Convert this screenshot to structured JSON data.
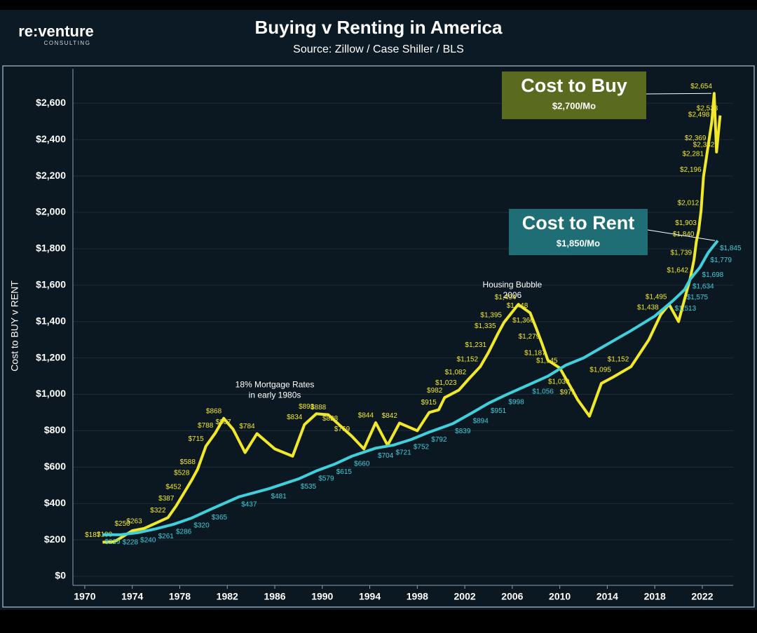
{
  "brand": {
    "name": "re:venture",
    "tagline": "CONSULTING"
  },
  "chart_data": {
    "type": "line",
    "title": "Buying v Renting in America",
    "subtitle": "Source: Zillow / Case Shiller / BLS",
    "y_label": "Cost to BUY v RENT",
    "xlim": [
      1969,
      2024.6
    ],
    "ylim": [
      -50,
      2790
    ],
    "xticks": [
      1970,
      1974,
      1978,
      1982,
      1986,
      1990,
      1994,
      1998,
      2002,
      2006,
      2010,
      2014,
      2018,
      2022
    ],
    "yticks": [
      {
        "value": 0,
        "label": "$0"
      },
      {
        "value": 200,
        "label": "$200"
      },
      {
        "value": 400,
        "label": "$400"
      },
      {
        "value": 600,
        "label": "$600"
      },
      {
        "value": 800,
        "label": "$800"
      },
      {
        "value": 1000,
        "label": "$1,000"
      },
      {
        "value": 1200,
        "label": "$1,200"
      },
      {
        "value": 1400,
        "label": "$1,400"
      },
      {
        "value": 1600,
        "label": "$1,600"
      },
      {
        "value": 1800,
        "label": "$1,800"
      },
      {
        "value": 2000,
        "label": "$2,000"
      },
      {
        "value": 2200,
        "label": "$2,200"
      },
      {
        "value": 2400,
        "label": "$2,400"
      },
      {
        "value": 2600,
        "label": "$2,600"
      }
    ],
    "grid": true,
    "series": [
      {
        "name": "Cost to Buy",
        "note": "$2,700/Mo",
        "color": "#f2e82a",
        "box_color": "#5a6a1f",
        "x": [
          1971.5,
          1972.5,
          1974,
          1975,
          1977,
          1977.7,
          1978.3,
          1979,
          1979.5,
          1980.2,
          1981,
          1981.7,
          1982.5,
          1983.5,
          1984.5,
          1986,
          1987.5,
          1988.5,
          1989.5,
          1990.5,
          1991.5,
          1992.5,
          1993.5,
          1994.5,
          1995.5,
          1996.5,
          1998,
          1999,
          1999.8,
          2000.3,
          2001.5,
          2002.3,
          2003.3,
          2004,
          2004.8,
          2005.3,
          2006.5,
          2007.5,
          2008,
          2008.5,
          2009,
          2010,
          2011,
          2011.5,
          2012.5,
          2013.5,
          2014.5,
          2016,
          2017.5,
          2018.5,
          2019.2,
          2020,
          2021,
          2021.3,
          2021.5,
          2021.7,
          2021.9,
          2022.1,
          2022.3,
          2022.5,
          2022.8,
          2023,
          2023.2,
          2023.5
        ],
        "values": [
          187,
          190,
          250,
          263,
          322,
          387,
          452,
          528,
          588,
          715,
          788,
          868,
          807,
          680,
          784,
          700,
          660,
          834,
          893,
          888,
          828,
          769,
          700,
          844,
          720,
          842,
          800,
          900,
          915,
          982,
          1023,
          1082,
          1152,
          1231,
          1335,
          1395,
          1494,
          1448,
          1366,
          1279,
          1187,
          1145,
          1030,
          971,
          880,
          1060,
          1095,
          1152,
          1300,
          1438,
          1495,
          1400,
          1642,
          1739,
          1840,
          1903,
          2012,
          2196,
          2281,
          2369,
          2498,
          2654,
          2332,
          2533
        ],
        "value_labels": [
          "$187",
          "$190",
          "$250",
          "$263",
          "$322",
          "$387",
          "$452",
          "$528",
          "$588",
          "$715",
          "$788",
          "$868",
          "$807",
          null,
          "$784",
          null,
          null,
          "$834",
          "$893",
          "$888",
          "$828",
          "$769",
          null,
          "$844",
          null,
          "$842",
          null,
          null,
          "$915",
          "$982",
          "$1,023",
          "$1,082",
          "$1,152",
          "$1,231",
          "$1,335",
          "$1,395",
          "$1,494",
          "$1,448",
          "$1,366",
          "$1,279",
          "$1,187",
          "$1,145",
          "$1,030",
          "$971",
          null,
          null,
          "$1,095",
          "$1,152",
          null,
          "$1,438",
          "$1,495",
          null,
          "$1,642",
          "$1,739",
          "$1,840",
          "$1,903",
          "$2,012",
          "$2,196",
          "$2,281",
          "$2,369",
          "$2,498",
          "$2,654",
          "$2,332",
          "$2,533"
        ]
      },
      {
        "name": "Cost to Rent",
        "note": "$1,850/Mo",
        "color": "#3fd0dc",
        "box_color": "#1f6e76",
        "x": [
          1971.5,
          1973,
          1974.5,
          1976,
          1977.5,
          1979,
          1980.5,
          1983,
          1985.5,
          1988,
          1989.5,
          1991,
          1992.5,
          1994.5,
          1996,
          1997.5,
          1999,
          2001,
          2002.5,
          2004,
          2005.5,
          2007.5,
          2009,
          2010.5,
          2012,
          2014,
          2016,
          2018,
          2019.5,
          2020.5,
          2021,
          2021.8,
          2022.5,
          2023.3
        ],
        "values": [
          229,
          228,
          240,
          261,
          286,
          320,
          365,
          437,
          481,
          535,
          579,
          615,
          660,
          704,
          721,
          752,
          792,
          839,
          894,
          951,
          998,
          1056,
          1100,
          1160,
          1200,
          1275,
          1350,
          1430,
          1513,
          1575,
          1634,
          1698,
          1779,
          1845
        ],
        "value_labels": [
          "$229",
          "$228",
          "$240",
          "$261",
          "$286",
          "$320",
          "$365",
          "$437",
          "$481",
          "$535",
          "$579",
          "$615",
          "$660",
          "$704",
          "$721",
          "$752",
          "$792",
          "$839",
          "$894",
          "$951",
          "$998",
          "$1,056",
          null,
          null,
          null,
          null,
          null,
          null,
          "$1,513",
          "$1,575",
          "$1,634",
          "$1,698",
          "$1,779",
          "$1,845"
        ]
      }
    ],
    "annotations": [
      {
        "x": 1986,
        "y": 1050,
        "text": "18% Mortgage Rates",
        "text2": "in early 1980s"
      },
      {
        "x": 2006,
        "y": 1600,
        "text": "Housing Bubble",
        "text2": "2006"
      }
    ]
  }
}
